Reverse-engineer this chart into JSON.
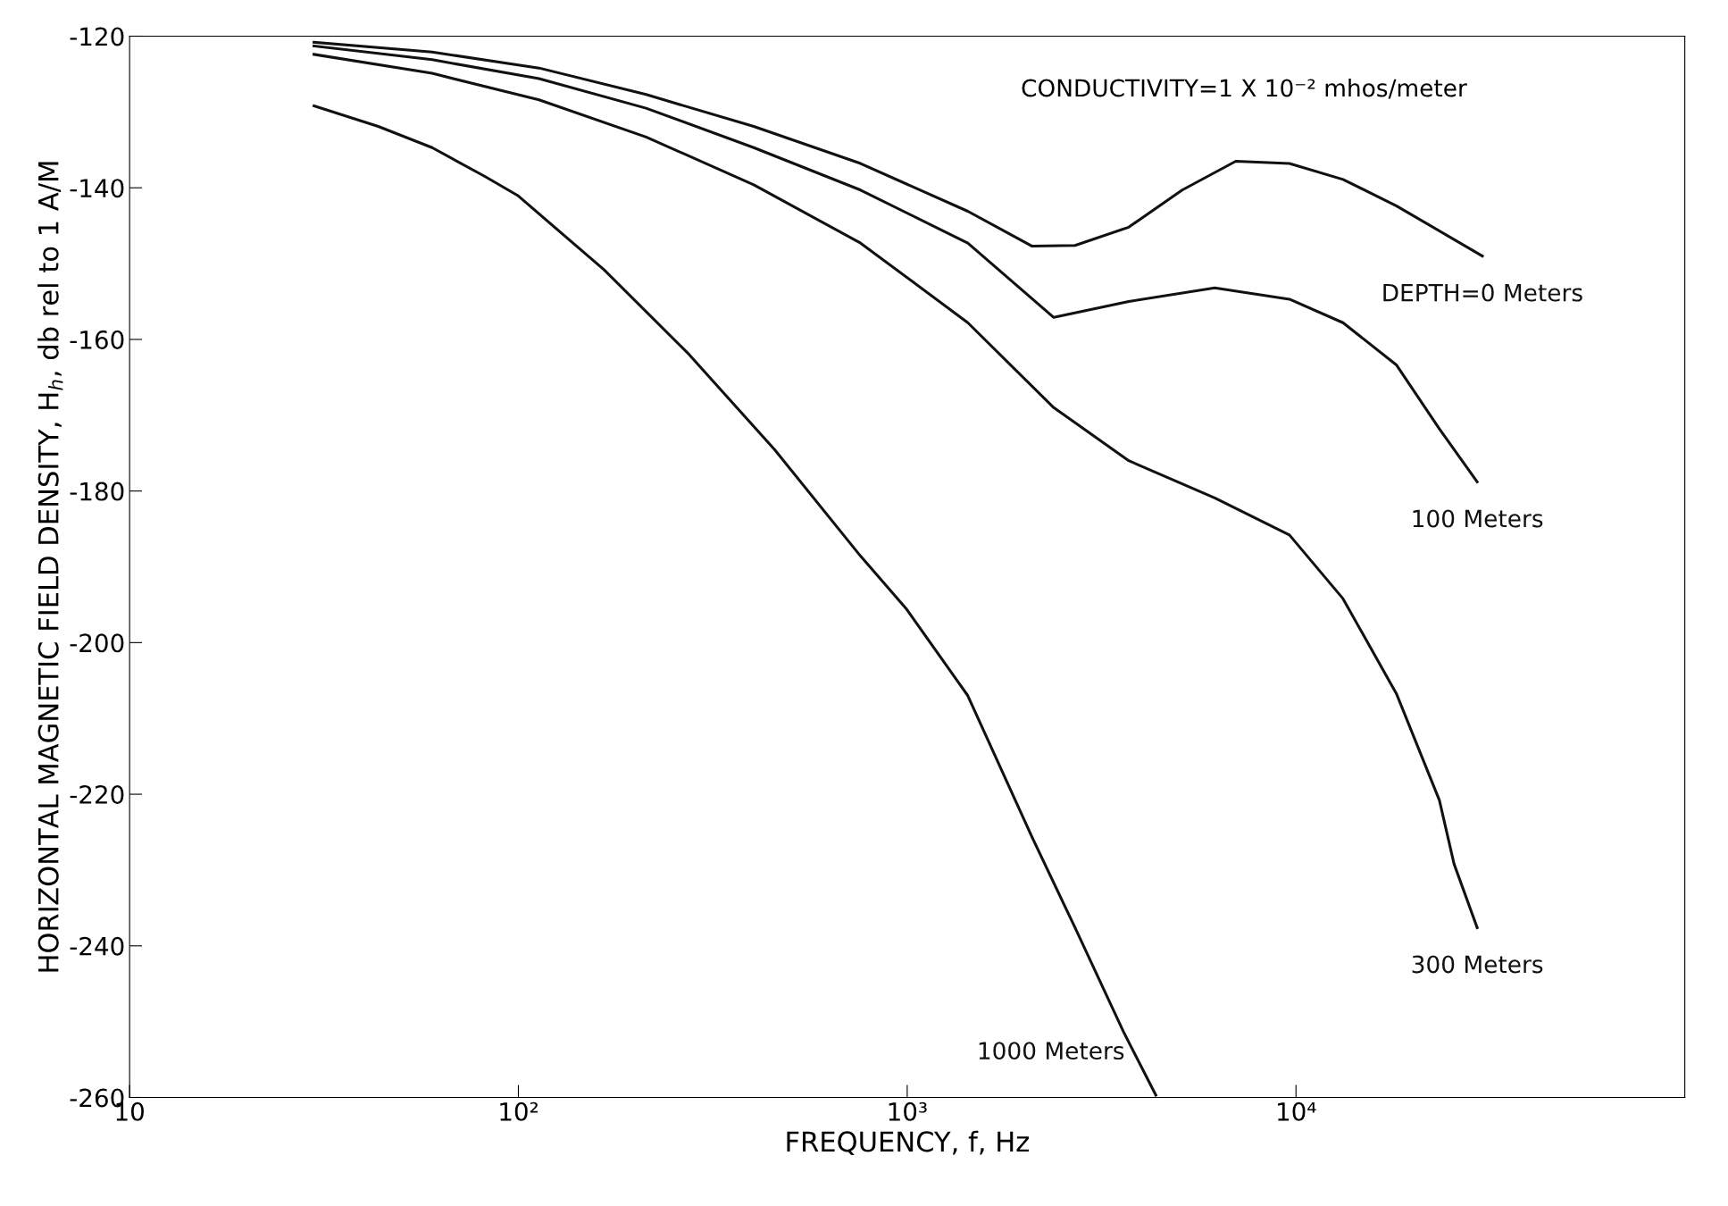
{
  "chart_data": {
    "type": "line",
    "xlabel": "FREQUENCY, f, Hz",
    "ylabel": "HORIZONTAL MAGNETIC FIELD DENSITY, H$_{h}$, db rel to 1 A/M",
    "log": "x",
    "xlim": [
      10,
      100000
    ],
    "xticks": [
      10,
      {
        "value": 100,
        "label": "10²"
      },
      {
        "value": 1000,
        "label": "10³"
      },
      {
        "value": 10000,
        "label": "10⁴"
      }
    ],
    "ylim": [
      -260,
      -120
    ],
    "yticks": [
      -120,
      -140,
      -160,
      -180,
      -200,
      -220,
      -240,
      -260
    ],
    "grid": false,
    "legend": false,
    "marker": "none",
    "line_style": "solid",
    "annotations": [
      "CONDUCTIVITY=1 X 10⁻² mhos/meter"
    ],
    "series": [
      {
        "name": "DEPTH=0 Meters",
        "color": "#111111",
        "x": [
          29.8,
          60,
          113,
          213,
          403,
          759,
          1432,
          2096,
          2702,
          3713,
          5096,
          7000,
          9620,
          13210,
          18150,
          30150
        ],
        "values": [
          -120.8,
          -122.1,
          -124.2,
          -127.7,
          -131.9,
          -136.8,
          -143.1,
          -147.7,
          -147.6,
          -145.2,
          -140.3,
          -136.5,
          -136.8,
          -138.9,
          -142.4,
          -149.0
        ]
      },
      {
        "name": "100 Meters",
        "color": "#111111",
        "x": [
          29.8,
          60,
          113,
          213,
          403,
          759,
          1432,
          2382,
          3713,
          6180,
          9620,
          13210,
          18150,
          23380,
          29240
        ],
        "values": [
          -121.3,
          -123.1,
          -125.6,
          -129.5,
          -134.7,
          -140.3,
          -147.3,
          -157.1,
          -155.0,
          -153.2,
          -154.7,
          -157.8,
          -163.4,
          -171.8,
          -178.8
        ]
      },
      {
        "name": "300 Meters",
        "color": "#111111",
        "x": [
          29.8,
          60,
          113,
          213,
          403,
          759,
          1432,
          2382,
          3713,
          6180,
          9620,
          13210,
          18150,
          23380,
          25500,
          29240
        ],
        "values": [
          -122.4,
          -124.9,
          -128.4,
          -133.3,
          -139.6,
          -147.3,
          -157.8,
          -169.0,
          -176.0,
          -180.9,
          -185.8,
          -194.2,
          -206.8,
          -220.8,
          -229.2,
          -237.6
        ]
      },
      {
        "name": "1000 Meters",
        "color": "#111111",
        "x": [
          29.8,
          43.6,
          60,
          82,
          99.5,
          166,
          275,
          457,
          759,
          997,
          1432,
          2096,
          2702,
          3597,
          4360
        ],
        "values": [
          -129.2,
          -131.9,
          -134.7,
          -138.5,
          -141.0,
          -150.8,
          -162.0,
          -174.6,
          -188.6,
          -195.6,
          -207.0,
          -225.7,
          -237.6,
          -251.3,
          -259.7
        ]
      }
    ]
  }
}
